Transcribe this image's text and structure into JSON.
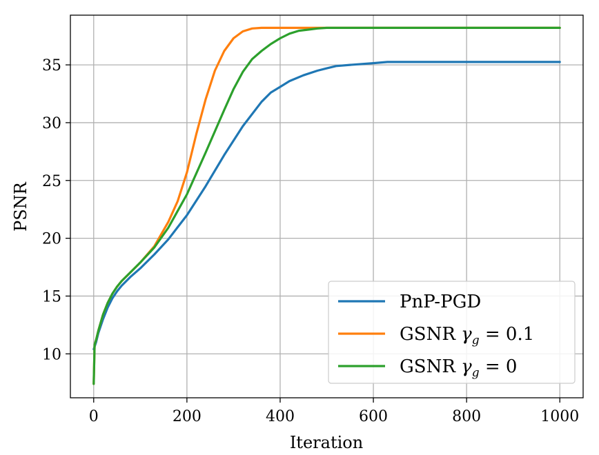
{
  "chart_data": {
    "type": "line",
    "title": "",
    "xlabel": "Iteration",
    "ylabel": "PSNR",
    "xlim": [
      -50,
      1050
    ],
    "ylim": [
      6.2,
      39.3
    ],
    "xticks": [
      0,
      200,
      400,
      600,
      800,
      1000
    ],
    "yticks": [
      10,
      15,
      20,
      25,
      30,
      35
    ],
    "grid": true,
    "legend_position": "bottom-right",
    "series": [
      {
        "name": "PnP-PGD",
        "color": "#1f77b4",
        "x": [
          0,
          5,
          10,
          20,
          30,
          40,
          50,
          60,
          80,
          100,
          130,
          160,
          200,
          240,
          280,
          320,
          360,
          380,
          400,
          420,
          450,
          480,
          500,
          520,
          550,
          600,
          630,
          700,
          800,
          900,
          1000
        ],
        "y": [
          10.4,
          11.0,
          11.8,
          13.0,
          14.0,
          14.8,
          15.4,
          15.9,
          16.7,
          17.4,
          18.6,
          19.9,
          22.0,
          24.5,
          27.2,
          29.7,
          31.8,
          32.6,
          33.1,
          33.6,
          34.1,
          34.5,
          34.7,
          34.9,
          35.0,
          35.15,
          35.25,
          35.25,
          35.25,
          35.25,
          35.25
        ]
      },
      {
        "name": "GSNR γ_g = 0.1",
        "color": "#ff7f0e",
        "x": [
          0,
          2,
          5,
          10,
          20,
          30,
          40,
          50,
          60,
          80,
          100,
          130,
          160,
          180,
          200,
          220,
          240,
          260,
          280,
          300,
          320,
          340,
          360,
          400,
          500,
          600,
          700,
          800,
          900,
          1000
        ],
        "y": [
          7.4,
          10.8,
          11.2,
          12.0,
          13.4,
          14.4,
          15.2,
          15.8,
          16.3,
          17.1,
          17.9,
          19.3,
          21.4,
          23.2,
          25.7,
          29.0,
          32.0,
          34.5,
          36.2,
          37.3,
          37.9,
          38.15,
          38.2,
          38.2,
          38.2,
          38.2,
          38.2,
          38.2,
          38.2,
          38.2
        ]
      },
      {
        "name": "GSNR γ_g = 0",
        "color": "#2ca02c",
        "x": [
          0,
          2,
          5,
          10,
          20,
          30,
          40,
          50,
          60,
          80,
          100,
          130,
          160,
          200,
          240,
          280,
          300,
          320,
          340,
          360,
          380,
          400,
          420,
          440,
          460,
          480,
          500,
          600,
          700,
          800,
          900,
          1000
        ],
        "y": [
          7.4,
          10.8,
          11.2,
          12.0,
          13.4,
          14.4,
          15.2,
          15.8,
          16.3,
          17.1,
          17.9,
          19.2,
          20.9,
          23.8,
          27.4,
          31.1,
          32.9,
          34.4,
          35.5,
          36.2,
          36.8,
          37.3,
          37.7,
          37.95,
          38.05,
          38.15,
          38.2,
          38.2,
          38.2,
          38.2,
          38.2,
          38.2
        ]
      }
    ],
    "legend": [
      {
        "prefix": "PnP-PGD",
        "gamma": "",
        "sub": "",
        "suffix": ""
      },
      {
        "prefix": "GSNR ",
        "gamma": "γ",
        "sub": "g",
        "suffix": " = 0.1"
      },
      {
        "prefix": "GSNR ",
        "gamma": "γ",
        "sub": "g",
        "suffix": " = 0"
      }
    ]
  }
}
